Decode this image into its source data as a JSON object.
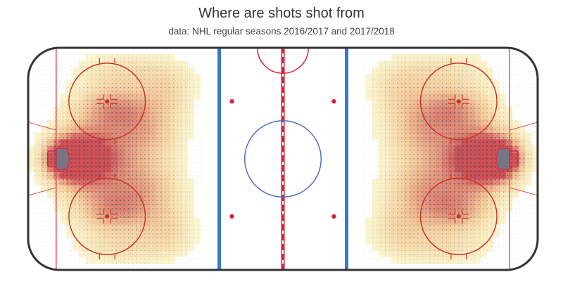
{
  "chart_data": {
    "type": "heatmap",
    "title": "Where are shots shot from",
    "subtitle": "data: NHL regular seasons 2016/2017 and 2017/2018",
    "xlabel": "",
    "ylabel": "",
    "xlim": [
      -100,
      100
    ],
    "ylim": [
      -42.5,
      42.5
    ],
    "grid": false,
    "legend": "none",
    "units": "feet (rink coordinates)",
    "colors": {
      "board": "#333333",
      "red_line": "#d6223c",
      "goal_line": "#e0505a",
      "blue_line": "#3c78c8",
      "center_circle": "#4a6fc4",
      "faceoff_circle": "#c83228",
      "goal_crease": "#6b7b8c",
      "density_low": "#f2f27a",
      "density_mid": "#eaa85a",
      "density_high": "#c8323c",
      "shot_dot": "#555555"
    },
    "hotspots": [
      {
        "x": 85,
        "y": 0,
        "sx": 6,
        "sy": 5,
        "w": 1.0
      },
      {
        "x": 78,
        "y": 0,
        "sx": 9,
        "sy": 8,
        "w": 0.75
      },
      {
        "x": 68,
        "y": 0,
        "sx": 14,
        "sy": 13,
        "w": 0.45
      },
      {
        "x": 66,
        "y": 20,
        "sx": 11,
        "sy": 6,
        "w": 0.55
      },
      {
        "x": 66,
        "y": -20,
        "sx": 11,
        "sy": 6,
        "w": 0.55
      },
      {
        "x": 53,
        "y": 10,
        "sx": 10,
        "sy": 7,
        "w": 0.35
      },
      {
        "x": 53,
        "y": -10,
        "sx": 10,
        "sy": 7,
        "w": 0.35
      },
      {
        "x": 45,
        "y": 26,
        "sx": 8,
        "sy": 7,
        "w": 0.3
      },
      {
        "x": 45,
        "y": -26,
        "sx": 8,
        "sy": 7,
        "w": 0.3
      },
      {
        "x": 62,
        "y": 34,
        "sx": 14,
        "sy": 5,
        "w": 0.3
      },
      {
        "x": 62,
        "y": -34,
        "sx": 14,
        "sy": 5,
        "w": 0.3
      },
      {
        "x": -85,
        "y": 0,
        "sx": 6,
        "sy": 5,
        "w": 1.0
      },
      {
        "x": -78,
        "y": 0,
        "sx": 9,
        "sy": 8,
        "w": 0.75
      },
      {
        "x": -68,
        "y": 0,
        "sx": 14,
        "sy": 13,
        "w": 0.45
      },
      {
        "x": -66,
        "y": 20,
        "sx": 11,
        "sy": 6,
        "w": 0.55
      },
      {
        "x": -66,
        "y": -20,
        "sx": 11,
        "sy": 6,
        "w": 0.55
      },
      {
        "x": -53,
        "y": 10,
        "sx": 10,
        "sy": 7,
        "w": 0.35
      },
      {
        "x": -53,
        "y": -10,
        "sx": 10,
        "sy": 7,
        "w": 0.35
      },
      {
        "x": -45,
        "y": 26,
        "sx": 8,
        "sy": 7,
        "w": 0.3
      },
      {
        "x": -45,
        "y": -26,
        "sx": 8,
        "sy": 7,
        "w": 0.3
      },
      {
        "x": -62,
        "y": 34,
        "sx": 14,
        "sy": 5,
        "w": 0.3
      },
      {
        "x": -62,
        "y": -34,
        "sx": 14,
        "sy": 5,
        "w": 0.3
      }
    ]
  }
}
